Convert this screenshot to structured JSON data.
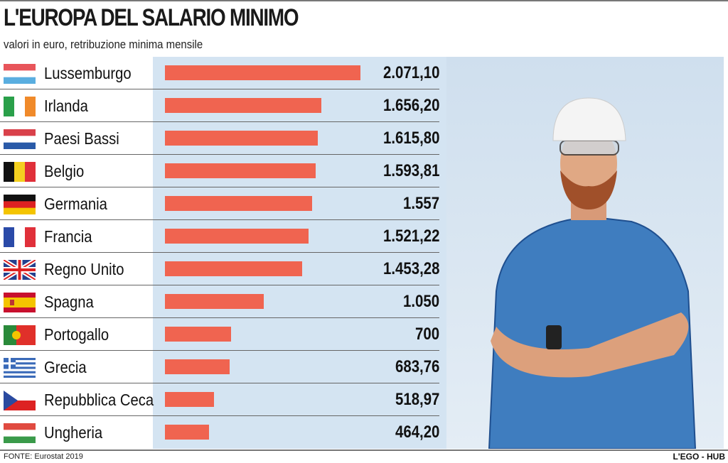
{
  "title": "L'EUROPA DEL SALARIO MINIMO",
  "subtitle": "valori in euro, retribuzione minima mensile",
  "source": "FONTE: Eurostat 2019",
  "credit": "L'EGO - HUB",
  "colors": {
    "bar": "#f06450",
    "panel": "#d4e4f2"
  },
  "chart_data": {
    "type": "bar",
    "orientation": "horizontal",
    "categories": [
      "Lussemburgo",
      "Irlanda",
      "Paesi Bassi",
      "Belgio",
      "Germania",
      "Francia",
      "Regno Unito",
      "Spagna",
      "Portogallo",
      "Grecia",
      "Repubblica Ceca",
      "Ungheria"
    ],
    "values": [
      2071.1,
      1656.2,
      1615.8,
      1593.81,
      1557,
      1521.22,
      1453.28,
      1050,
      700,
      683.76,
      518.97,
      464.2
    ],
    "labels": [
      "2.071,10",
      "1.656,20",
      "1.615,80",
      "1.593,81",
      "1.557",
      "1.521,22",
      "1.453,28",
      "1.050",
      "700",
      "683,76",
      "518,97",
      "464,20"
    ],
    "flags": [
      "luxembourg-flag",
      "ireland-flag",
      "netherlands-flag",
      "belgium-flag",
      "germany-flag",
      "france-flag",
      "uk-flag",
      "spain-flag",
      "portugal-flag",
      "greece-flag",
      "czech-flag",
      "hungary-flag"
    ],
    "title": "L'EUROPA DEL SALARIO MINIMO",
    "xlabel": "",
    "ylabel": ""
  }
}
